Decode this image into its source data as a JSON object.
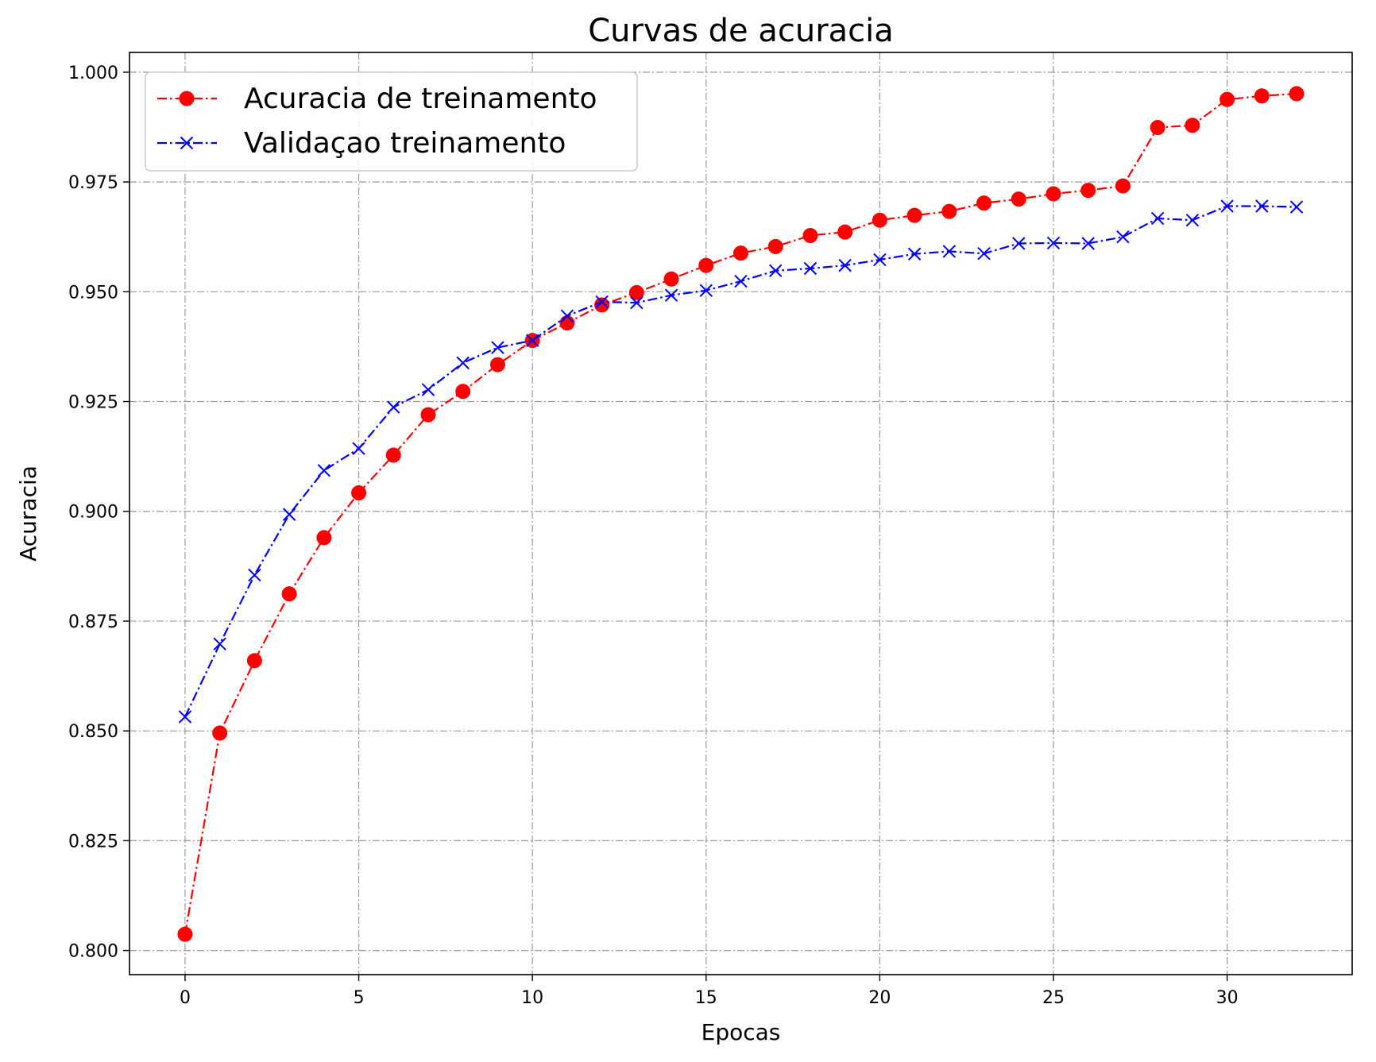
{
  "chart_data": {
    "type": "line",
    "title": "Curvas de acuracia",
    "xlabel": "Epocas",
    "ylabel": "Acuracia",
    "xlim": [
      -1.6,
      33.6
    ],
    "ylim": [
      0.7945,
      1.0045
    ],
    "x_ticks": [
      0,
      5,
      10,
      15,
      20,
      25,
      30
    ],
    "x_tick_labels": [
      "0",
      "5",
      "10",
      "15",
      "20",
      "25",
      "30"
    ],
    "y_ticks": [
      0.8,
      0.825,
      0.85,
      0.875,
      0.9,
      0.925,
      0.95,
      0.975,
      1.0
    ],
    "y_tick_labels": [
      "0.800",
      "0.825",
      "0.850",
      "0.875",
      "0.900",
      "0.925",
      "0.950",
      "0.975",
      "1.000"
    ],
    "grid": true,
    "legend_position": "top-left",
    "x": [
      0,
      1,
      2,
      3,
      4,
      5,
      6,
      7,
      8,
      9,
      10,
      11,
      12,
      13,
      14,
      15,
      16,
      17,
      18,
      19,
      20,
      21,
      22,
      23,
      24,
      25,
      26,
      27,
      28,
      29,
      30,
      31,
      32
    ],
    "series": [
      {
        "name": "Acuracia de treinamento",
        "color": "#ff0000",
        "marker": "circle",
        "line_style": "dash-dot",
        "values": [
          0.8037,
          0.8495,
          0.866,
          0.8812,
          0.894,
          0.9042,
          0.9128,
          0.922,
          0.9273,
          0.9334,
          0.9389,
          0.9429,
          0.947,
          0.9498,
          0.9529,
          0.956,
          0.9588,
          0.9603,
          0.9628,
          0.9636,
          0.9663,
          0.9674,
          0.9683,
          0.9702,
          0.9711,
          0.9723,
          0.9731,
          0.9741,
          0.9874,
          0.9879,
          0.9938,
          0.9946,
          0.9951
        ]
      },
      {
        "name": "Validaçao treinamento",
        "color": "#0000ff",
        "marker": "x",
        "line_style": "dash-dot",
        "values": [
          0.8532,
          0.8698,
          0.8855,
          0.8993,
          0.9093,
          0.9143,
          0.9237,
          0.9277,
          0.9338,
          0.9373,
          0.9389,
          0.9445,
          0.9477,
          0.9475,
          0.9492,
          0.9503,
          0.9524,
          0.9548,
          0.9553,
          0.956,
          0.9573,
          0.9586,
          0.9592,
          0.9587,
          0.961,
          0.9611,
          0.961,
          0.9625,
          0.9667,
          0.9663,
          0.9695,
          0.9695,
          0.9693
        ]
      }
    ]
  }
}
